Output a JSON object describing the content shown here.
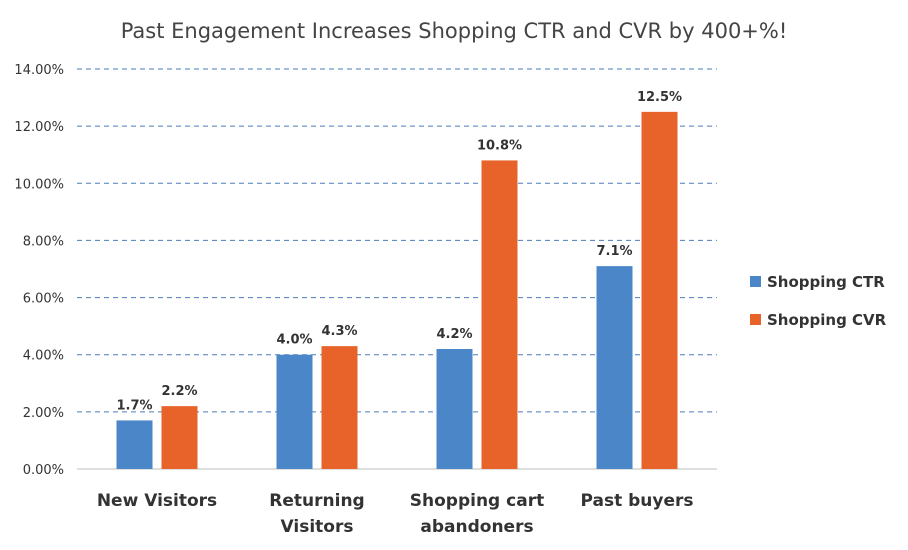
{
  "chart_data": {
    "type": "bar",
    "title": "Past Engagement Increases Shopping CTR and CVR by 400+%!",
    "categories": [
      [
        "New Visitors"
      ],
      [
        "Returning",
        "Visitors"
      ],
      [
        "Shopping cart",
        "abandoners"
      ],
      [
        "Past buyers"
      ]
    ],
    "series": [
      {
        "name": "Shopping CTR",
        "values": [
          1.7,
          4.0,
          4.2,
          7.1
        ],
        "labels": [
          "1.7%",
          "4.0%",
          "4.2%",
          "7.1%"
        ],
        "color": "#4a86c8"
      },
      {
        "name": "Shopping CVR",
        "values": [
          2.2,
          4.3,
          10.8,
          12.5
        ],
        "labels": [
          "2.2%",
          "4.3%",
          "10.8%",
          "12.5%"
        ],
        "color": "#e8632a"
      }
    ],
    "ylim": [
      0,
      14
    ],
    "yticks": [
      0,
      2,
      4,
      6,
      8,
      10,
      12,
      14
    ],
    "ytick_labels": [
      "0.00%",
      "2.00%",
      "4.00%",
      "6.00%",
      "8.00%",
      "10.00%",
      "12.00%",
      "14.00%"
    ],
    "grid": true,
    "legend_position": "right"
  }
}
